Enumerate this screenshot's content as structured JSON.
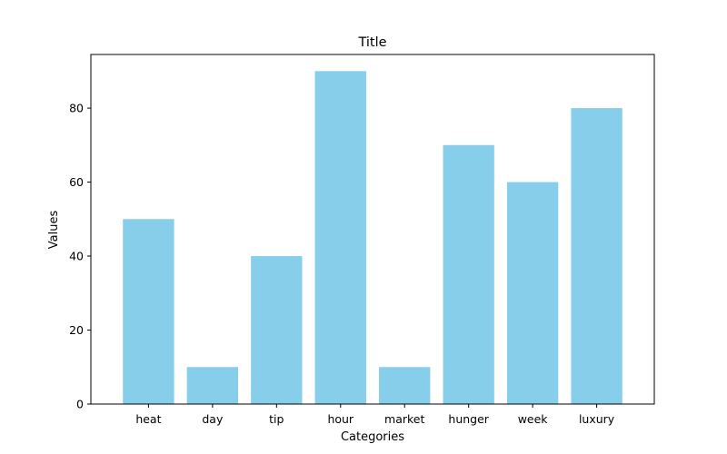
{
  "chart_data": {
    "type": "bar",
    "title": "Title",
    "xlabel": "Categories",
    "ylabel": "Values",
    "categories": [
      "heat",
      "day",
      "tip",
      "hour",
      "market",
      "hunger",
      "week",
      "luxury"
    ],
    "values": [
      50,
      10,
      40,
      90,
      10,
      70,
      60,
      80
    ],
    "ylim": [
      0,
      94.5
    ],
    "yticks": [
      0,
      20,
      40,
      60,
      80
    ],
    "bar_color": "#87ceeb",
    "grid": false,
    "legend": "none"
  }
}
